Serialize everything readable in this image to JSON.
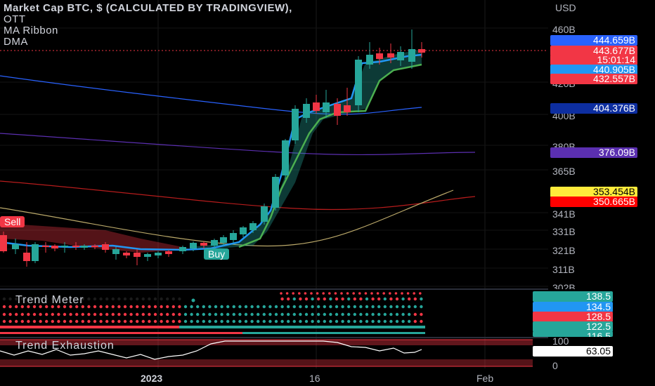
{
  "legend": {
    "title": "Market Cap BTC, $ (CALCULATED BY TRADINGVIEW),",
    "lines": [
      "OTT",
      "MA Ribbon",
      "DMA"
    ]
  },
  "currency": "USD",
  "y_axis_labels": [
    "460B",
    "420B",
    "400B",
    "380B",
    "365B",
    "341B",
    "331B",
    "321B",
    "311B",
    "302B"
  ],
  "price_tags": [
    {
      "text": "444.659B",
      "color": "#2962ff"
    },
    {
      "text": "443.677B",
      "color": "#f23645"
    },
    {
      "text": "15:01:14",
      "color": "#f23645"
    },
    {
      "text": "440.905B",
      "color": "#2196f3"
    },
    {
      "text": "432.557B",
      "color": "#f23645"
    },
    {
      "text": "404.376B",
      "color": "#0d2ea0"
    },
    {
      "text": "376.09B",
      "color": "#5b2fb0"
    },
    {
      "text": "353.454B",
      "color": "#ffeb3b"
    },
    {
      "text": "350.665B",
      "color": "#ff0000"
    }
  ],
  "signals": {
    "sell": "Sell",
    "buy": "Buy"
  },
  "trend_meter": {
    "title": "Trend Meter",
    "values": [
      {
        "text": "138.5",
        "color": "#26a69a"
      },
      {
        "text": "134.5",
        "color": "#2196f3"
      },
      {
        "text": "128.5",
        "color": "#f23645"
      },
      {
        "text": "122.5",
        "color": "#26a69a"
      },
      {
        "text": "116.5",
        "color": "#26a69a"
      }
    ]
  },
  "trend_exhaustion": {
    "title": "Trend Exhaustion",
    "levels": [
      "100",
      "0"
    ],
    "value": "63.05"
  },
  "x_axis_labels": [
    "2023",
    "16",
    "Feb"
  ],
  "colors": {
    "bull": "#26a69a",
    "bear": "#f23645",
    "ott": "#2196f3",
    "support": "#4caf50"
  }
}
